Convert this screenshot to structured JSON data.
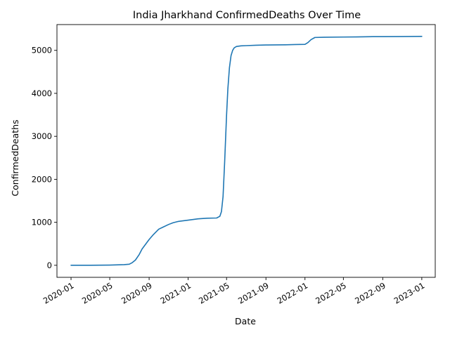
{
  "chart_data": {
    "type": "line",
    "title": "India Jharkhand ConfirmedDeaths Over Time",
    "xlabel": "Date",
    "ylabel": "ConfirmedDeaths",
    "xlim": [
      "2019-11-18",
      "2023-02-12"
    ],
    "ylim": [
      -280,
      5600
    ],
    "x_ticks": [
      "2020-01",
      "2020-05",
      "2020-09",
      "2021-01",
      "2021-05",
      "2021-09",
      "2022-01",
      "2022-05",
      "2022-09",
      "2023-01"
    ],
    "y_ticks": [
      0,
      1000,
      2000,
      3000,
      4000,
      5000
    ],
    "grid": false,
    "legend": "none",
    "line_color": "#1f77b4",
    "series": [
      {
        "x": [
          "2020-01-01",
          "2020-03-01",
          "2020-05-01",
          "2020-06-15",
          "2020-07-01",
          "2020-07-10",
          "2020-07-20",
          "2020-08-01",
          "2020-08-10",
          "2020-08-20",
          "2020-09-01",
          "2020-09-15",
          "2020-10-01",
          "2020-10-15",
          "2020-11-01",
          "2020-11-15",
          "2020-12-01",
          "2021-01-01",
          "2021-02-01",
          "2021-03-01",
          "2021-03-31",
          "2021-04-10",
          "2021-04-15",
          "2021-04-20",
          "2021-04-25",
          "2021-05-01",
          "2021-05-05",
          "2021-05-10",
          "2021-05-15",
          "2021-05-20",
          "2021-05-25",
          "2021-06-01",
          "2021-06-15",
          "2021-07-01",
          "2021-08-01",
          "2021-09-01",
          "2021-10-01",
          "2021-11-01",
          "2021-12-01",
          "2022-01-01",
          "2022-01-10",
          "2022-01-20",
          "2022-02-01",
          "2022-03-01",
          "2022-05-01",
          "2022-07-01",
          "2022-08-01",
          "2022-09-01",
          "2022-11-01",
          "2023-01-01"
        ],
        "y": [
          0,
          0,
          5,
          15,
          25,
          60,
          120,
          250,
          380,
          480,
          600,
          720,
          840,
          890,
          950,
          990,
          1020,
          1050,
          1080,
          1095,
          1100,
          1140,
          1250,
          1600,
          2400,
          3500,
          4100,
          4600,
          4880,
          5000,
          5060,
          5090,
          5105,
          5110,
          5120,
          5125,
          5128,
          5130,
          5135,
          5140,
          5180,
          5250,
          5300,
          5305,
          5310,
          5315,
          5320,
          5320,
          5322,
          5325
        ]
      }
    ]
  }
}
